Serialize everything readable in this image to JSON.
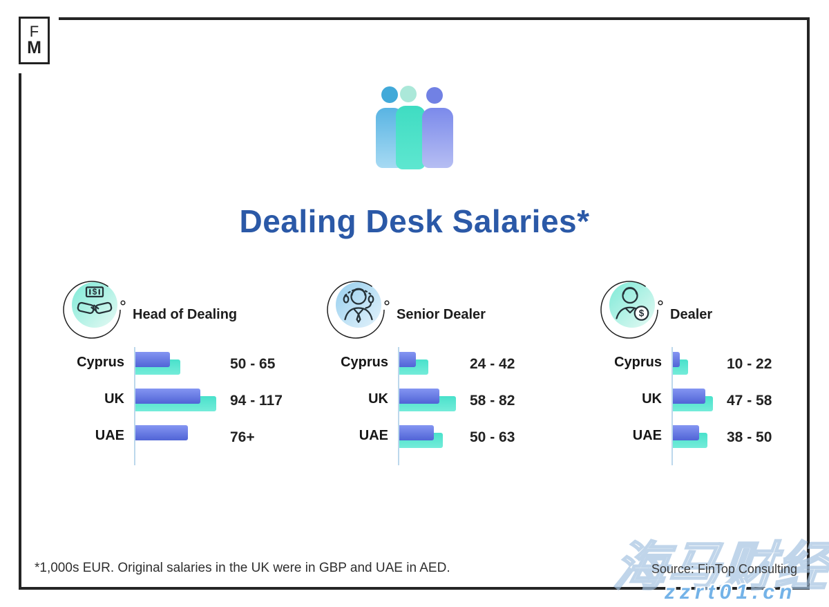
{
  "page": {
    "logo": {
      "top": "F",
      "bottom": "M"
    },
    "header_icon": "three-people-icon",
    "title": "Dealing Desk Salaries*",
    "footnote": "*1,000s EUR. Original salaries in the UK were in GBP and UAE in AED.",
    "source": "Source: FinTop Consulting",
    "watermark": {
      "brand": "海马财经",
      "site": "zzrt01.cn"
    }
  },
  "colors": {
    "title_blue": "#2b59a7",
    "bar_low_top": "#8495f2",
    "bar_low_bottom": "#5064d6",
    "bar_high_top": "#49e1cb",
    "bar_high_bottom": "#74ecd9",
    "axis": "#bcd8ec",
    "frame": "#252525",
    "icon_circle_mint": "#7eead7",
    "icon_circle_blue": "#97cfee",
    "watermark_blue": "#74b3e8"
  },
  "chart_data": [
    {
      "type": "bar",
      "orientation": "horizontal",
      "title": "Head of Dealing",
      "icon": "handshake-money-icon",
      "categories": [
        "Cyprus",
        "UK",
        "UAE"
      ],
      "series": [
        {
          "name": "range-low-blue",
          "values": [
            50,
            94,
            76
          ]
        },
        {
          "name": "range-high-teal",
          "values": [
            65,
            117,
            null
          ]
        }
      ],
      "value_labels": [
        "50 - 65",
        "94 - 117",
        "76+"
      ],
      "unit": "1,000s EUR",
      "xlim": [
        0,
        130
      ],
      "grid": false,
      "legend": false
    },
    {
      "type": "bar",
      "orientation": "horizontal",
      "title": "Senior Dealer",
      "icon": "dealer-headset-icon",
      "categories": [
        "Cyprus",
        "UK",
        "UAE"
      ],
      "series": [
        {
          "name": "range-low-blue",
          "values": [
            24,
            58,
            50
          ]
        },
        {
          "name": "range-high-teal",
          "values": [
            42,
            82,
            63
          ]
        }
      ],
      "value_labels": [
        "24 - 42",
        "58 - 82",
        "50 - 63"
      ],
      "unit": "1,000s EUR",
      "xlim": [
        0,
        130
      ],
      "grid": false,
      "legend": false
    },
    {
      "type": "bar",
      "orientation": "horizontal",
      "title": "Dealer",
      "icon": "dealer-coin-icon",
      "categories": [
        "Cyprus",
        "UK",
        "UAE"
      ],
      "series": [
        {
          "name": "range-low-blue",
          "values": [
            10,
            47,
            38
          ]
        },
        {
          "name": "range-high-teal",
          "values": [
            22,
            58,
            50
          ]
        }
      ],
      "value_labels": [
        "10 - 22",
        "47 - 58",
        "38 - 50"
      ],
      "unit": "1,000s EUR",
      "xlim": [
        0,
        130
      ],
      "grid": false,
      "legend": false
    }
  ]
}
